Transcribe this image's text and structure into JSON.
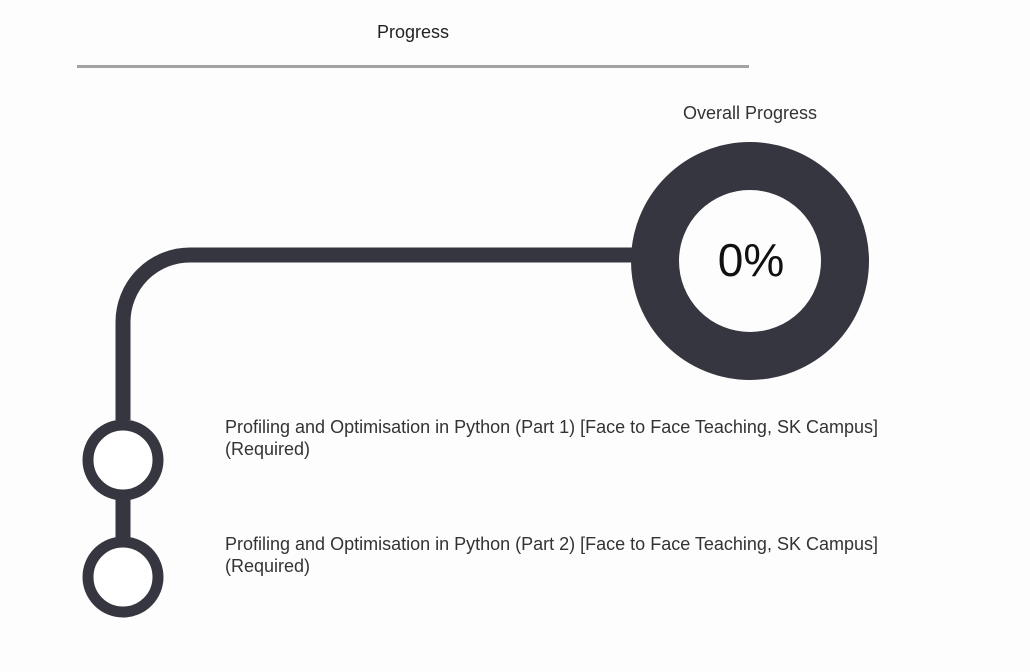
{
  "header": {
    "tab_label": "Progress"
  },
  "overall": {
    "title": "Overall Progress",
    "percent_text": "0%",
    "percent_value": 0
  },
  "items": [
    {
      "title": "Profiling and Optimisation in Python (Part 1) [Face to Face Teaching, SK Campus]",
      "requirement": "(Required)",
      "completed": false
    },
    {
      "title": "Profiling and Optimisation in Python (Part 2) [Face to Face Teaching, SK Campus]",
      "requirement": "(Required)",
      "completed": false
    }
  ],
  "colors": {
    "track": "#363640",
    "tab_underline": "#a3a3a6",
    "background": "#fdfdfd"
  }
}
